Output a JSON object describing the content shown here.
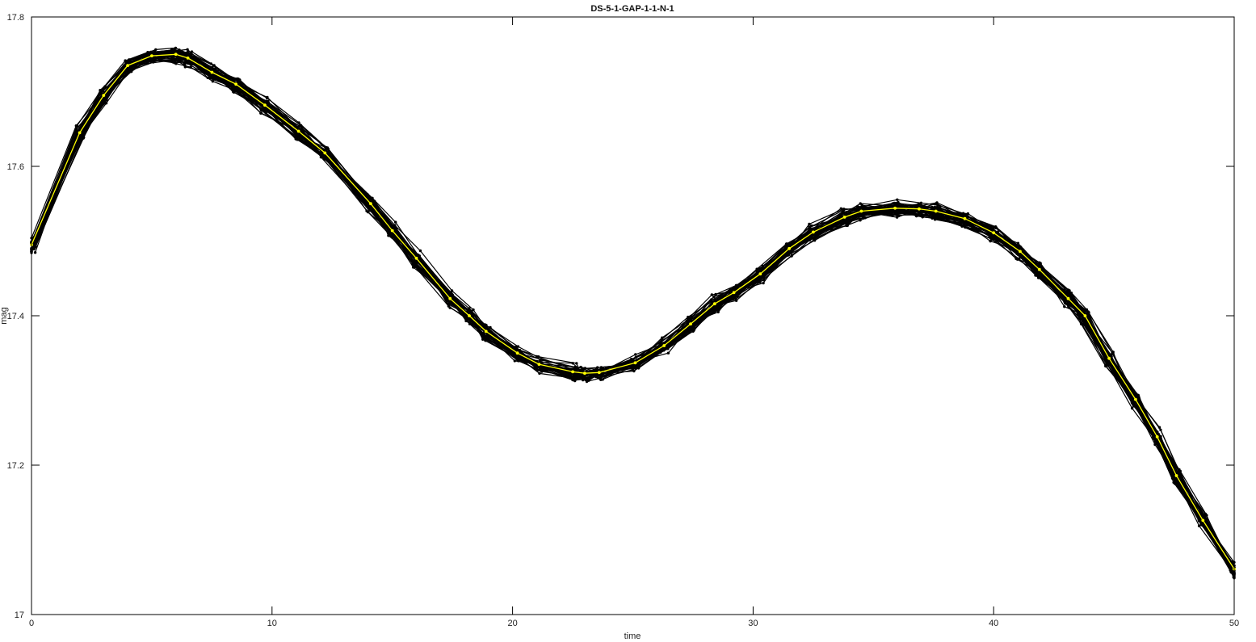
{
  "chart_data": {
    "type": "line",
    "title": "DS-5-1-GAP-1-1-N-1",
    "xlabel": "time",
    "ylabel": "mag",
    "xlim": [
      0,
      50
    ],
    "ylim": [
      17.0,
      17.8
    ],
    "x_ticks": [
      "0",
      "10",
      "20",
      "30",
      "40",
      "50"
    ],
    "y_ticks": [
      "17",
      "17.2",
      "17.4",
      "17.6",
      "17.8"
    ],
    "grid": false,
    "legend": "none",
    "colors": {
      "ensemble": "#000000",
      "mean": "#ffff00"
    },
    "series": [
      {
        "role": "mean",
        "color": "#ffff00",
        "x": [
          0,
          2,
          3,
          4,
          5,
          6,
          6.5,
          7.5,
          8.5,
          9.7,
          11.1,
          12.2,
          14.1,
          15,
          16,
          17.4,
          18.2,
          18.9,
          20.2,
          21.1,
          22.5,
          23,
          23.6,
          25.1,
          26.3,
          27.4,
          28.4,
          29.2,
          30.3,
          31.5,
          32.5,
          33.8,
          34.5,
          35.9,
          36.9,
          37.6,
          38.8,
          40,
          41.1,
          41.9,
          43.1,
          43.8,
          44.8,
          45.9,
          46.8,
          47.6,
          48.7,
          50
        ],
        "y": [
          17.495,
          17.645,
          17.695,
          17.735,
          17.748,
          17.75,
          17.745,
          17.726,
          17.71,
          17.682,
          17.647,
          17.618,
          17.55,
          17.514,
          17.477,
          17.423,
          17.4,
          17.379,
          17.35,
          17.335,
          17.325,
          17.323,
          17.324,
          17.337,
          17.36,
          17.389,
          17.416,
          17.431,
          17.456,
          17.49,
          17.512,
          17.532,
          17.54,
          17.544,
          17.543,
          17.54,
          17.53,
          17.511,
          17.486,
          17.462,
          17.423,
          17.4,
          17.343,
          17.288,
          17.238,
          17.186,
          17.126,
          17.061
        ]
      }
    ]
  }
}
